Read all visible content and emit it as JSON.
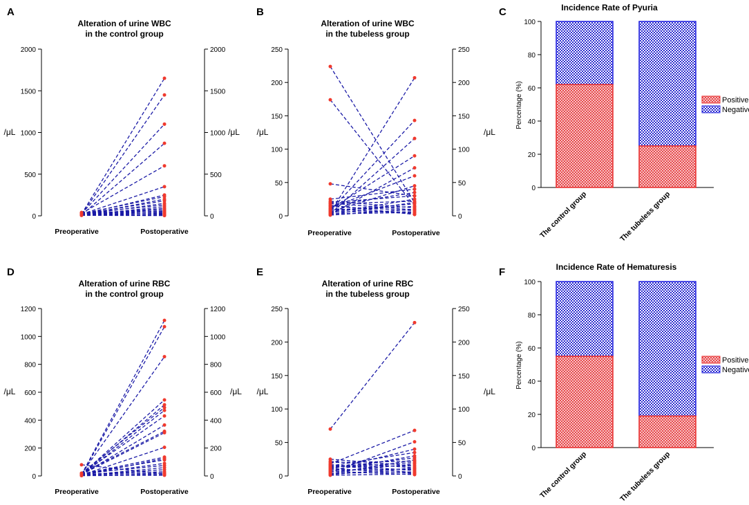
{
  "chart_data": [
    {
      "panel": "A",
      "type": "line",
      "title_lines": [
        "Alteration of urine WBC",
        "in the control group"
      ],
      "categories": [
        "Preoperative",
        "Postoperative"
      ],
      "ylabel_left": "/μL",
      "ylabel_right": "/μL",
      "ylim": [
        0,
        2000
      ],
      "yticks": [
        0,
        500,
        1000,
        1500,
        2000
      ],
      "pairs": [
        [
          20,
          1650
        ],
        [
          15,
          1450
        ],
        [
          25,
          1100
        ],
        [
          10,
          870
        ],
        [
          30,
          600
        ],
        [
          20,
          350
        ],
        [
          15,
          250
        ],
        [
          25,
          230
        ],
        [
          10,
          200
        ],
        [
          20,
          180
        ],
        [
          12,
          150
        ],
        [
          30,
          130
        ],
        [
          8,
          110
        ],
        [
          18,
          90
        ],
        [
          22,
          75
        ],
        [
          14,
          60
        ],
        [
          40,
          50
        ],
        [
          10,
          40
        ],
        [
          35,
          30
        ],
        [
          5,
          20
        ],
        [
          12,
          12
        ],
        [
          28,
          8
        ],
        [
          16,
          5
        ],
        [
          6,
          3
        ]
      ]
    },
    {
      "panel": "B",
      "type": "line",
      "title_lines": [
        "Alteration of urine WBC",
        "in the tubeless group"
      ],
      "categories": [
        "Preoperative",
        "Postoperative"
      ],
      "ylabel_left": "/μL",
      "ylabel_right": "/μL",
      "ylim": [
        0,
        250
      ],
      "yticks": [
        0,
        50,
        100,
        150,
        200,
        250
      ],
      "pairs": [
        [
          224,
          20
        ],
        [
          174,
          15
        ],
        [
          48,
          30
        ],
        [
          5,
          207
        ],
        [
          8,
          143
        ],
        [
          3,
          116
        ],
        [
          10,
          90
        ],
        [
          2,
          72
        ],
        [
          12,
          60
        ],
        [
          6,
          45
        ],
        [
          25,
          40
        ],
        [
          20,
          30
        ],
        [
          15,
          35
        ],
        [
          4,
          25
        ],
        [
          18,
          22
        ],
        [
          7,
          18
        ],
        [
          22,
          12
        ],
        [
          1,
          10
        ],
        [
          14,
          8
        ],
        [
          9,
          14
        ],
        [
          3,
          5
        ],
        [
          11,
          3
        ],
        [
          16,
          2
        ],
        [
          2,
          20
        ],
        [
          6,
          6
        ],
        [
          19,
          9
        ]
      ]
    },
    {
      "panel": "C",
      "type": "bar",
      "stacked": true,
      "title": "Incidence Rate of Pyuria",
      "categories": [
        "The control group",
        "The tubeless group"
      ],
      "ylabel": "Percentage (%)",
      "ylim": [
        0,
        100
      ],
      "yticks": [
        0,
        20,
        40,
        60,
        80,
        100
      ],
      "legend_position": "right",
      "series": [
        {
          "name": "Positive",
          "values": [
            62,
            25
          ]
        },
        {
          "name": "Negative",
          "values": [
            38,
            75
          ]
        }
      ]
    },
    {
      "panel": "D",
      "type": "line",
      "title_lines": [
        "Alteration of urine RBC",
        "in the control group"
      ],
      "categories": [
        "Preoperative",
        "Postoperative"
      ],
      "ylabel_left": "/μL",
      "ylabel_right": "/μL",
      "ylim": [
        0,
        1200
      ],
      "yticks": [
        0,
        200,
        400,
        600,
        800,
        1000,
        1200
      ],
      "pairs": [
        [
          80,
          15
        ],
        [
          10,
          1115
        ],
        [
          5,
          1070
        ],
        [
          15,
          855
        ],
        [
          12,
          545
        ],
        [
          8,
          510
        ],
        [
          20,
          490
        ],
        [
          6,
          470
        ],
        [
          14,
          430
        ],
        [
          9,
          365
        ],
        [
          18,
          320
        ],
        [
          11,
          310
        ],
        [
          7,
          205
        ],
        [
          13,
          135
        ],
        [
          4,
          125
        ],
        [
          16,
          115
        ],
        [
          10,
          90
        ],
        [
          19,
          75
        ],
        [
          3,
          60
        ],
        [
          8,
          45
        ],
        [
          12,
          30
        ],
        [
          6,
          20
        ],
        [
          15,
          10
        ],
        [
          2,
          5
        ]
      ]
    },
    {
      "panel": "E",
      "type": "line",
      "title_lines": [
        "Alteration of urine RBC",
        "in the tubeless group"
      ],
      "categories": [
        "Preoperative",
        "Postoperative"
      ],
      "ylabel_left": "/μL",
      "ylabel_right": "/μL",
      "ylim": [
        0,
        250
      ],
      "yticks": [
        0,
        50,
        100,
        150,
        200,
        250
      ],
      "pairs": [
        [
          70,
          229
        ],
        [
          25,
          15
        ],
        [
          22,
          12
        ],
        [
          18,
          68
        ],
        [
          5,
          51
        ],
        [
          10,
          40
        ],
        [
          15,
          35
        ],
        [
          8,
          30
        ],
        [
          12,
          27
        ],
        [
          3,
          24
        ],
        [
          20,
          22
        ],
        [
          6,
          18
        ],
        [
          14,
          15
        ],
        [
          2,
          12
        ],
        [
          9,
          10
        ],
        [
          17,
          8
        ],
        [
          4,
          6
        ],
        [
          11,
          4
        ],
        [
          1,
          3
        ],
        [
          7,
          2
        ],
        [
          13,
          20
        ],
        [
          16,
          5
        ]
      ]
    },
    {
      "panel": "F",
      "type": "bar",
      "stacked": true,
      "title": "Incidence Rate of Hematuresis",
      "categories": [
        "The control group",
        "The tubeless group"
      ],
      "ylabel": "Percentage (%)",
      "ylim": [
        0,
        100
      ],
      "yticks": [
        0,
        20,
        40,
        60,
        80,
        100
      ],
      "legend_position": "right",
      "series": [
        {
          "name": "Positive",
          "values": [
            55,
            19
          ]
        },
        {
          "name": "Negative",
          "values": [
            45,
            81
          ]
        }
      ]
    }
  ],
  "colors": {
    "line": "#1a1aa6",
    "point": "#f03a2e",
    "positive": "#e8474b",
    "negative": "#2a2ad0"
  }
}
